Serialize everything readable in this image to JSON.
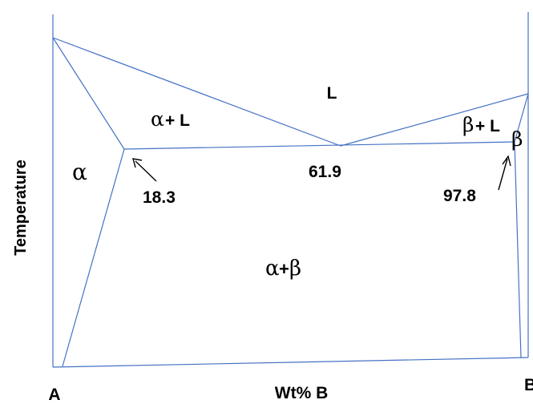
{
  "axes": {
    "y_label": "Temperature",
    "x_label": "Wt% B",
    "left_end": "A",
    "right_end": "B"
  },
  "regions": {
    "liquid": "L",
    "alpha_liquid_greek": "α",
    "alpha_liquid_rest": "+ L",
    "beta_liquid_greek": "β",
    "beta_liquid_rest": "+ L",
    "alpha": "α",
    "beta": "β",
    "alpha_beta_a": "α",
    "alpha_beta_plus": "+",
    "alpha_beta_b": "β"
  },
  "compositions": {
    "alpha_max": "18.3",
    "eutectic": "61.9",
    "beta_min": "97.8"
  },
  "colors": {
    "phase_line": "#4472c4",
    "text": "#000000"
  }
}
